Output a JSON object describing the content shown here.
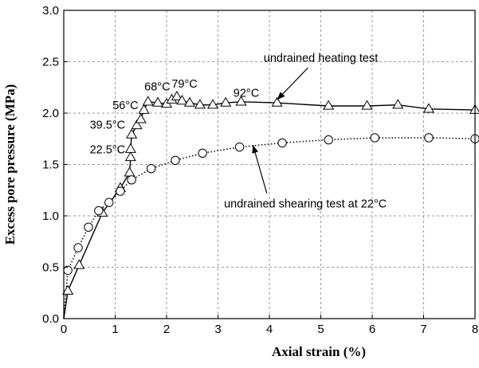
{
  "chart_data": {
    "type": "line",
    "xlabel": "Axial strain (%)",
    "ylabel": "Excess pore pressure (MPa)",
    "xlim": [
      0,
      8
    ],
    "ylim": [
      0,
      3.0
    ],
    "x_ticks": [
      "0",
      "1",
      "2",
      "3",
      "4",
      "5",
      "6",
      "7",
      "8"
    ],
    "y_ticks": [
      "0.0",
      "0.5",
      "1.0",
      "1.5",
      "2.0",
      "2.5",
      "3.0"
    ],
    "grid": true,
    "series": [
      {
        "name": "undrained heating test",
        "line_style": "solid",
        "marker": "triangle",
        "x": [
          0.0,
          0.08,
          0.3,
          0.75,
          1.1,
          1.28,
          1.3,
          1.3,
          1.32,
          1.42,
          1.5,
          1.56,
          1.64,
          1.83,
          2.0,
          2.1,
          2.2,
          2.3,
          2.45,
          2.65,
          2.9,
          3.15,
          3.45,
          4.15,
          5.15,
          5.9,
          6.5,
          7.1,
          8.0
        ],
        "y": [
          0.0,
          0.27,
          0.52,
          1.03,
          1.27,
          1.42,
          1.57,
          1.65,
          1.79,
          1.88,
          1.94,
          2.03,
          2.11,
          2.1,
          2.09,
          2.13,
          2.16,
          2.12,
          2.1,
          2.08,
          2.08,
          2.1,
          2.11,
          2.1,
          2.07,
          2.07,
          2.08,
          2.04,
          2.03
        ]
      },
      {
        "name": "undrained shearing test at 22°C",
        "line_style": "dotted",
        "marker": "circle",
        "x": [
          0.0,
          0.08,
          0.28,
          0.48,
          0.68,
          0.88,
          1.1,
          1.32,
          1.7,
          2.17,
          2.7,
          3.42,
          4.25,
          5.15,
          6.05,
          7.1,
          8.0
        ],
        "y": [
          0.0,
          0.47,
          0.69,
          0.89,
          1.05,
          1.13,
          1.24,
          1.35,
          1.46,
          1.54,
          1.61,
          1.67,
          1.71,
          1.74,
          1.76,
          1.76,
          1.75
        ]
      }
    ],
    "annotations": [
      {
        "text": "undrained heating test",
        "x": 5.0,
        "y": 2.5
      },
      {
        "text": "undrained shearing test at 22°C",
        "x": 4.7,
        "y": 1.08
      },
      {
        "text": "68°C",
        "x": 1.82,
        "y": 2.22
      },
      {
        "text": "79°C",
        "x": 2.35,
        "y": 2.25
      },
      {
        "text": "92°C",
        "x": 3.55,
        "y": 2.16
      },
      {
        "text": "56°C",
        "x": 1.2,
        "y": 2.04
      },
      {
        "text": "39.5°C",
        "x": 0.85,
        "y": 1.85
      },
      {
        "text": "22.5°C",
        "x": 0.85,
        "y": 1.61
      }
    ]
  }
}
